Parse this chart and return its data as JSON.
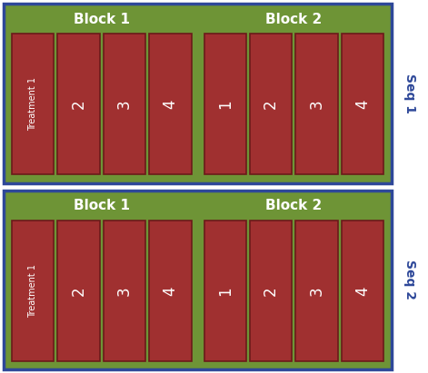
{
  "background_color": "#ffffff",
  "outer_border_color": "#2e4899",
  "green_color": "#6e9436",
  "red_color": "#a03030",
  "red_border_color": "#6b1a1a",
  "white_text_color": "#ffffff",
  "seq_text_color": "#2e4899",
  "rows": [
    {
      "seq_label": "Seq 1",
      "blocks": [
        {
          "title": "Block 1",
          "cells": [
            "Treatment 1",
            "2",
            "3",
            "4"
          ]
        },
        {
          "title": "Block 2",
          "cells": [
            "1",
            "2",
            "3",
            "4"
          ]
        }
      ]
    },
    {
      "seq_label": "Seq 2",
      "blocks": [
        {
          "title": "Block 1",
          "cells": [
            "Treatment 1",
            "2",
            "3",
            "4"
          ]
        },
        {
          "title": "Block 2",
          "cells": [
            "1",
            "2",
            "3",
            "4"
          ]
        }
      ]
    }
  ],
  "fig_width": 4.71,
  "fig_height": 4.11,
  "dpi": 100
}
